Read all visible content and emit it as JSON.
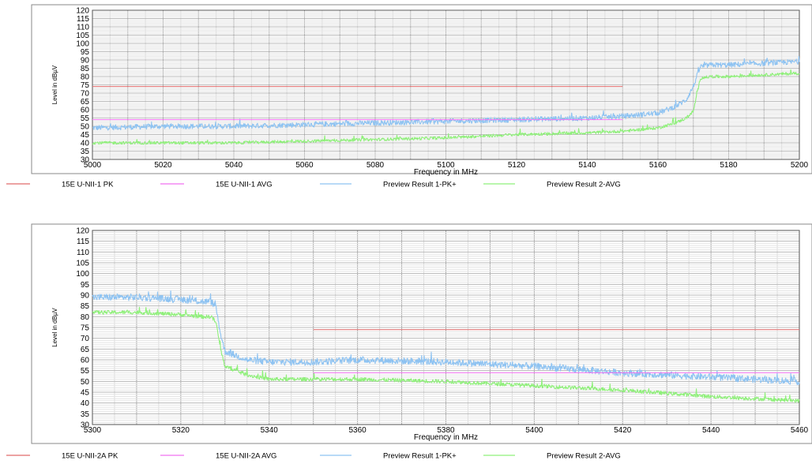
{
  "chart_data": [
    {
      "type": "line",
      "xlabel": "Frequency in MHz",
      "ylabel": "Level in dBµV",
      "xlim": [
        5000,
        5200
      ],
      "ylim": [
        30,
        120
      ],
      "x_ticks": [
        "5000",
        "5020",
        "5040",
        "5060",
        "5080",
        "5100",
        "5120",
        "5140",
        "5160",
        "5180",
        "5200"
      ],
      "y_ticks": [
        "30",
        "35",
        "40",
        "45",
        "50",
        "55",
        "60",
        "65",
        "70",
        "75",
        "80",
        "85",
        "90",
        "95",
        "100",
        "105",
        "110",
        "115",
        "120"
      ],
      "limit_lines": [
        {
          "name": "15E U-NII-1 PK",
          "color": "#e06a6a",
          "y": 74,
          "x_range": [
            5000,
            5150
          ]
        },
        {
          "name": "15E U-NII-1 AVG",
          "color": "#f070f0",
          "y": 54,
          "x_range": [
            5000,
            5150
          ]
        }
      ],
      "series": [
        {
          "name": "Preview Result 1-PK+",
          "color": "#8ec3f2",
          "x": [
            5000,
            5020,
            5040,
            5060,
            5080,
            5100,
            5120,
            5140,
            5150,
            5160,
            5165,
            5168,
            5170,
            5172,
            5175,
            5180,
            5190,
            5200
          ],
          "values": [
            49,
            50,
            50,
            51,
            52,
            53,
            54,
            55,
            56,
            58,
            62,
            66,
            74,
            86,
            87,
            87,
            88,
            89
          ]
        },
        {
          "name": "Preview Result 2-AVG",
          "color": "#8ff07a",
          "x": [
            5000,
            5020,
            5040,
            5060,
            5080,
            5100,
            5120,
            5140,
            5150,
            5160,
            5165,
            5168,
            5170,
            5172,
            5175,
            5180,
            5190,
            5200
          ],
          "values": [
            40,
            40,
            40,
            41,
            42,
            43,
            45,
            46,
            47,
            49,
            52,
            55,
            59,
            79,
            80,
            80,
            81,
            82
          ]
        }
      ],
      "legend_placement": "bottom"
    },
    {
      "type": "line",
      "xlabel": "Frequency in MHz",
      "ylabel": "Level in dBµV",
      "xlim": [
        5300,
        5460
      ],
      "ylim": [
        30,
        120
      ],
      "x_ticks": [
        "5300",
        "5320",
        "5340",
        "5360",
        "5380",
        "5400",
        "5420",
        "5440",
        "5460"
      ],
      "y_ticks": [
        "30",
        "35",
        "40",
        "45",
        "50",
        "55",
        "60",
        "65",
        "70",
        "75",
        "80",
        "85",
        "90",
        "95",
        "100",
        "105",
        "110",
        "115",
        "120"
      ],
      "limit_lines": [
        {
          "name": "15E U-NII-2A PK",
          "color": "#e06a6a",
          "y": 74,
          "x_range": [
            5350,
            5460
          ]
        },
        {
          "name": "15E U-NII-2A AVG",
          "color": "#f070f0",
          "y": 54,
          "x_range": [
            5350,
            5460
          ]
        }
      ],
      "series": [
        {
          "name": "Preview Result 1-PK+",
          "color": "#8ec3f2",
          "x": [
            5300,
            5310,
            5320,
            5325,
            5327,
            5328,
            5329,
            5330,
            5335,
            5340,
            5350,
            5360,
            5380,
            5400,
            5420,
            5440,
            5460
          ],
          "values": [
            89,
            89,
            88,
            87,
            87,
            84,
            72,
            64,
            60,
            59,
            59,
            60,
            59,
            57,
            54,
            52,
            50
          ]
        },
        {
          "name": "Preview Result 2-AVG",
          "color": "#8ff07a",
          "x": [
            5300,
            5310,
            5320,
            5325,
            5327,
            5328,
            5329,
            5330,
            5335,
            5340,
            5350,
            5360,
            5380,
            5400,
            5420,
            5440,
            5460
          ],
          "values": [
            82,
            82,
            81,
            80,
            80,
            77,
            65,
            57,
            53,
            51,
            51,
            51,
            50,
            48,
            46,
            43,
            41
          ]
        }
      ],
      "legend_placement": "bottom"
    }
  ],
  "legends": [
    [
      "15E U-NII-1 PK",
      "15E U-NII-1 AVG",
      "Preview Result 1-PK+",
      "Preview Result 2-AVG"
    ],
    [
      "15E U-NII-2A PK",
      "15E U-NII-2A AVG",
      "Preview Result 1-PK+",
      "Preview Result 2-AVG"
    ]
  ]
}
